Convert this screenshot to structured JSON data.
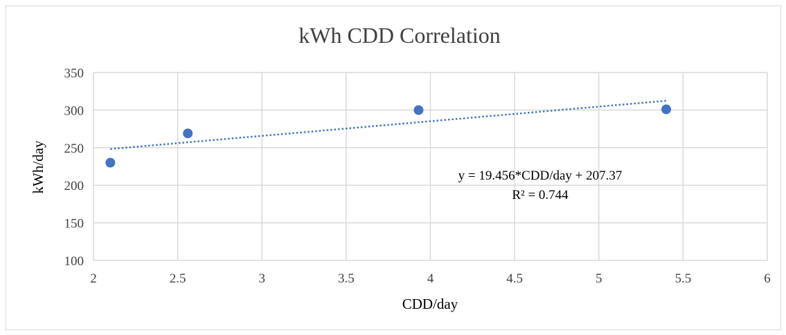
{
  "chart_data": {
    "type": "scatter",
    "title": "kWh CDD Correlation",
    "xlabel": "CDD/day",
    "ylabel": "kWh/day",
    "xlim": [
      2,
      6
    ],
    "ylim": [
      100,
      350
    ],
    "x_ticks": [
      2,
      2.5,
      3,
      3.5,
      4,
      4.5,
      5,
      5.5,
      6
    ],
    "y_ticks": [
      100,
      150,
      200,
      250,
      300,
      350
    ],
    "x_tick_labels": [
      "2",
      "2.5",
      "3",
      "3.5",
      "4",
      "4.5",
      "5",
      "5.5",
      "6"
    ],
    "y_tick_labels": [
      "100",
      "150",
      "200",
      "250",
      "300",
      "350"
    ],
    "grid": true,
    "legend": "none",
    "series": [
      {
        "x": [
          2.1,
          2.56,
          3.93,
          5.4
        ],
        "y": [
          230,
          269,
          300,
          301
        ],
        "color": "#4472c4"
      }
    ],
    "trendline": {
      "type": "linear",
      "slope": 19.456,
      "intercept": 207.37,
      "x_range": [
        2.1,
        5.4
      ],
      "color": "#4472c4",
      "style": "dotted",
      "equation_text": "y = 19.456*CDD/day  + 207.37",
      "r2_text": "R² = 0.744"
    }
  }
}
